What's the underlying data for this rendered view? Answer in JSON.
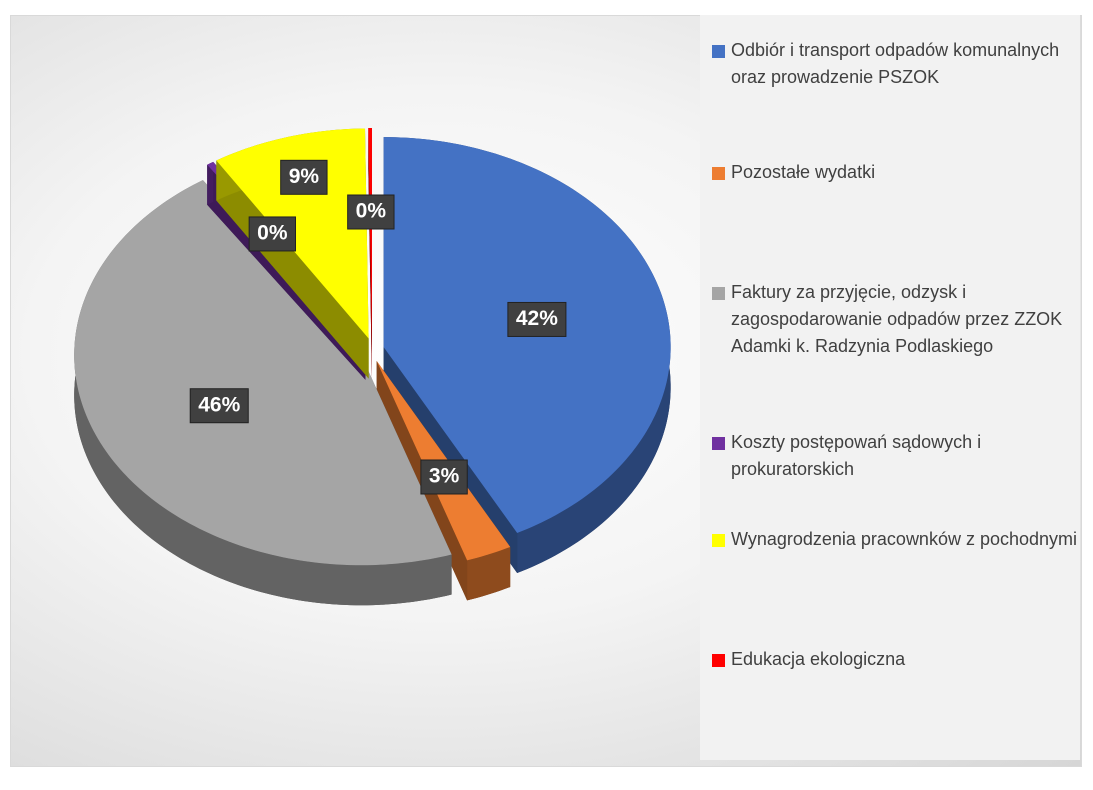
{
  "chart_data": {
    "type": "pie",
    "categories": [
      "Odbiór i transport odpadów komunalnych oraz prowadzenie PSZOK",
      "Pozostałe wydatki",
      "Faktury za przyjęcie, odzysk i zagospodarowanie odpadów przez ZZOK Adamki k. Radzynia Podlaskiego",
      "Koszty postępowań sądowych i prokuratorskich",
      "Wynagrodzenia pracownków z pochodnymi",
      "Edukacja ekologiczna"
    ],
    "values": [
      42.3,
      2.6,
      45.8,
      0.4,
      8.7,
      0.2
    ],
    "value_labels": [
      "42%",
      "3%",
      "46%",
      "0%",
      "9%",
      "0%"
    ],
    "colors": [
      "#4472c4",
      "#ed7d31",
      "#a5a5a5",
      "#7030a0",
      "#ffff00",
      "#ff0000"
    ],
    "legend": "right"
  }
}
